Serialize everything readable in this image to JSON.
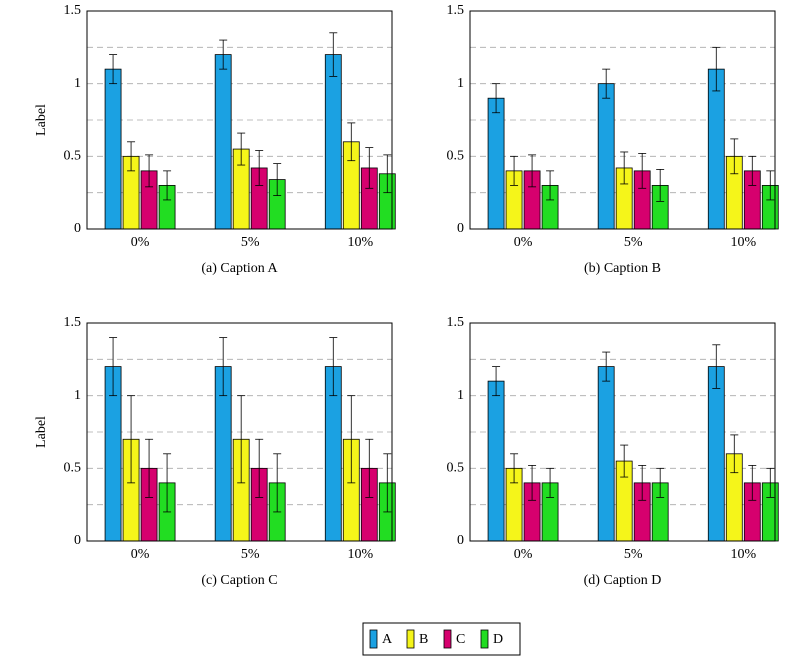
{
  "chart_data": [
    {
      "type": "bar",
      "caption": "(a) Caption A",
      "ylabel": "Label",
      "categories": [
        "0%",
        "5%",
        "10%"
      ],
      "ylim": [
        0,
        1.5
      ],
      "yticks": [
        0,
        0.5,
        1,
        1.5
      ],
      "minor_yticks": [
        0.25,
        0.75,
        1.25
      ],
      "grid": true,
      "series": [
        {
          "name": "A",
          "color": "#1ba1e2",
          "values": [
            1.1,
            1.2,
            1.2
          ],
          "errors": [
            0.1,
            0.1,
            0.15
          ]
        },
        {
          "name": "B",
          "color": "#f5f51a",
          "values": [
            0.5,
            0.55,
            0.6
          ],
          "errors": [
            0.1,
            0.11,
            0.13
          ]
        },
        {
          "name": "C",
          "color": "#d6006e",
          "values": [
            0.4,
            0.42,
            0.42
          ],
          "errors": [
            0.11,
            0.12,
            0.14
          ]
        },
        {
          "name": "D",
          "color": "#22dd22",
          "values": [
            0.3,
            0.34,
            0.38
          ],
          "errors": [
            0.1,
            0.11,
            0.13
          ]
        }
      ]
    },
    {
      "type": "bar",
      "caption": "(b) Caption B",
      "categories": [
        "0%",
        "5%",
        "10%"
      ],
      "ylim": [
        0,
        1.5
      ],
      "yticks": [
        0,
        0.5,
        1,
        1.5
      ],
      "minor_yticks": [
        0.25,
        0.75,
        1.25
      ],
      "grid": true,
      "series": [
        {
          "name": "A",
          "color": "#1ba1e2",
          "values": [
            0.9,
            1.0,
            1.1
          ],
          "errors": [
            0.1,
            0.1,
            0.15
          ]
        },
        {
          "name": "B",
          "color": "#f5f51a",
          "values": [
            0.4,
            0.42,
            0.5
          ],
          "errors": [
            0.1,
            0.11,
            0.12
          ]
        },
        {
          "name": "C",
          "color": "#d6006e",
          "values": [
            0.4,
            0.4,
            0.4
          ],
          "errors": [
            0.11,
            0.12,
            0.1
          ]
        },
        {
          "name": "D",
          "color": "#22dd22",
          "values": [
            0.3,
            0.3,
            0.3
          ],
          "errors": [
            0.1,
            0.11,
            0.1
          ]
        }
      ]
    },
    {
      "type": "bar",
      "caption": "(c) Caption C",
      "ylabel": "Label",
      "categories": [
        "0%",
        "5%",
        "10%"
      ],
      "ylim": [
        0,
        1.5
      ],
      "yticks": [
        0,
        0.5,
        1,
        1.5
      ],
      "minor_yticks": [
        0.25,
        0.75,
        1.25
      ],
      "grid": true,
      "series": [
        {
          "name": "A",
          "color": "#1ba1e2",
          "values": [
            1.2,
            1.2,
            1.2
          ],
          "errors": [
            0.2,
            0.2,
            0.2
          ]
        },
        {
          "name": "B",
          "color": "#f5f51a",
          "values": [
            0.7,
            0.7,
            0.7
          ],
          "errors": [
            0.3,
            0.3,
            0.3
          ]
        },
        {
          "name": "C",
          "color": "#d6006e",
          "values": [
            0.5,
            0.5,
            0.5
          ],
          "errors": [
            0.2,
            0.2,
            0.2
          ]
        },
        {
          "name": "D",
          "color": "#22dd22",
          "values": [
            0.4,
            0.4,
            0.4
          ],
          "errors": [
            0.2,
            0.2,
            0.2
          ]
        }
      ]
    },
    {
      "type": "bar",
      "caption": "(d) Caption D",
      "categories": [
        "0%",
        "5%",
        "10%"
      ],
      "ylim": [
        0,
        1.5
      ],
      "yticks": [
        0,
        0.5,
        1,
        1.5
      ],
      "minor_yticks": [
        0.25,
        0.75,
        1.25
      ],
      "grid": true,
      "series": [
        {
          "name": "A",
          "color": "#1ba1e2",
          "values": [
            1.1,
            1.2,
            1.2
          ],
          "errors": [
            0.1,
            0.1,
            0.15
          ]
        },
        {
          "name": "B",
          "color": "#f5f51a",
          "values": [
            0.5,
            0.55,
            0.6
          ],
          "errors": [
            0.1,
            0.11,
            0.13
          ]
        },
        {
          "name": "C",
          "color": "#d6006e",
          "values": [
            0.4,
            0.4,
            0.4
          ],
          "errors": [
            0.12,
            0.12,
            0.12
          ]
        },
        {
          "name": "D",
          "color": "#22dd22",
          "values": [
            0.4,
            0.4,
            0.4
          ],
          "errors": [
            0.1,
            0.1,
            0.1
          ]
        }
      ]
    }
  ]
}
